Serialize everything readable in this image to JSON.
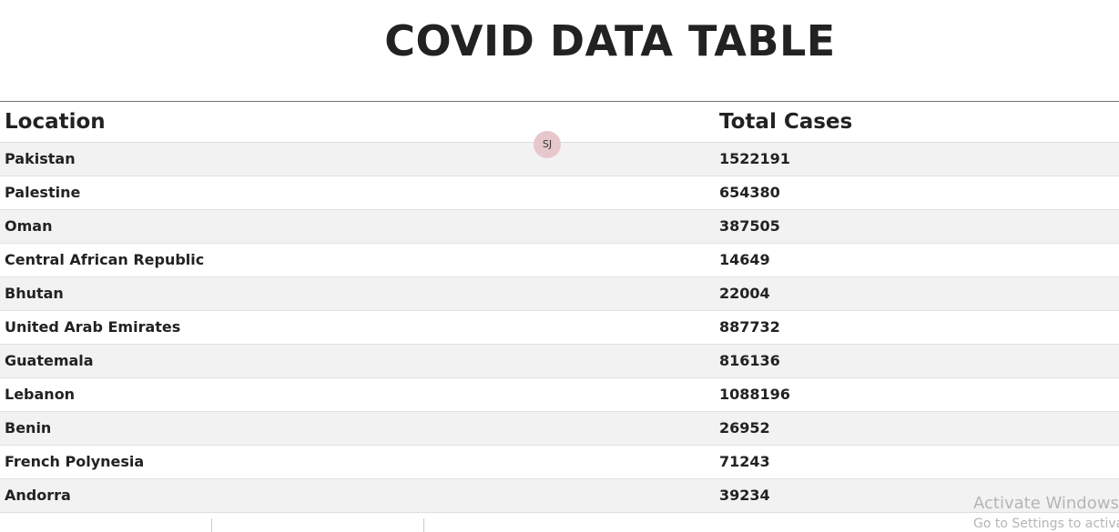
{
  "header": {
    "title": "COVID DATA TABLE"
  },
  "table": {
    "columns": [
      "Location",
      "Total Cases"
    ],
    "rows": [
      [
        "Pakistan",
        1522191
      ],
      [
        "Palestine",
        654380
      ],
      [
        "Oman",
        387505
      ],
      [
        "Central African Republic",
        14649
      ],
      [
        "Bhutan",
        22004
      ],
      [
        "United Arab Emirates",
        887732
      ],
      [
        "Guatemala",
        816136
      ],
      [
        "Lebanon",
        1088196
      ],
      [
        "Benin",
        26952
      ],
      [
        "French Polynesia",
        71243
      ],
      [
        "Andorra",
        39234
      ]
    ]
  },
  "avatar": {
    "initials": "SJ"
  },
  "watermark": {
    "line1": "Activate Windows",
    "line2": "Go to Settings to activat"
  }
}
